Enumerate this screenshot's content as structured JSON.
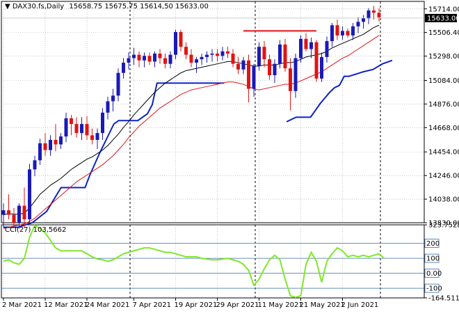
{
  "header": {
    "arrow": "▼",
    "symbol": "DAX30.fs,Daily",
    "ohlc": "15658.75 15675.75 15614,50 15633.00"
  },
  "cci_header": {
    "label": "CCI(27)",
    "value": "103,5662"
  },
  "colors": {
    "bull": "#1a1ab8",
    "bear": "#e01414",
    "ema_fast": "#000000",
    "ema_slow": "#e01414",
    "support": "#0a22c8",
    "resistance": "#e01414",
    "cci": "#7ee82a",
    "grid": "#9aa0a8",
    "level": "#3a6aa8"
  },
  "chart_data": [
    {
      "type": "candlestick",
      "title": "DAX30.fs,Daily",
      "price_axis_ticks": [
        "15714.00",
        "15506.40",
        "15298.00",
        "15084.00",
        "14876.00",
        "14668.00",
        "14454.00",
        "14246.00",
        "14038.00",
        "13830.00"
      ],
      "ylim": [
        13830,
        15780
      ],
      "last_price": "15633.00",
      "date_ticks": [
        "2 Mar 2021",
        "12 Mar 2021",
        "24 Mar 2021",
        "7 Apr 2021",
        "19 Apr 2021",
        "29 Apr 2021",
        "11 May 2021",
        "21 May 2021",
        "2 Jun 2021"
      ],
      "ohlc": [
        [
          13900,
          14000,
          13790,
          13940
        ],
        [
          13940,
          14080,
          13860,
          13900
        ],
        [
          13900,
          13960,
          13800,
          13830
        ],
        [
          13830,
          14000,
          13780,
          13980
        ],
        [
          13980,
          14140,
          13780,
          13860
        ],
        [
          13860,
          14350,
          13830,
          14300
        ],
        [
          14300,
          14420,
          14240,
          14380
        ],
        [
          14380,
          14570,
          14340,
          14530
        ],
        [
          14530,
          14620,
          14420,
          14470
        ],
        [
          14470,
          14600,
          14420,
          14560
        ],
        [
          14560,
          14700,
          14460,
          14520
        ],
        [
          14520,
          14620,
          14480,
          14590
        ],
        [
          14590,
          14800,
          14540,
          14750
        ],
        [
          14750,
          14780,
          14600,
          14700
        ],
        [
          14700,
          14760,
          14580,
          14620
        ],
        [
          14620,
          14760,
          14560,
          14700
        ],
        [
          14700,
          14770,
          14560,
          14600
        ],
        [
          14600,
          14660,
          14520,
          14560
        ],
        [
          14560,
          14660,
          14480,
          14620
        ],
        [
          14620,
          14840,
          14560,
          14800
        ],
        [
          14800,
          14940,
          14740,
          14900
        ],
        [
          14900,
          15010,
          14810,
          14950
        ],
        [
          14950,
          15190,
          14900,
          15150
        ],
        [
          15150,
          15280,
          15100,
          15240
        ],
        [
          15240,
          15330,
          15180,
          15280
        ],
        [
          15280,
          15370,
          15220,
          15310
        ],
        [
          15310,
          15340,
          15200,
          15260
        ],
        [
          15260,
          15330,
          15200,
          15300
        ],
        [
          15300,
          15330,
          15220,
          15250
        ],
        [
          15250,
          15340,
          15200,
          15320
        ],
        [
          15320,
          15360,
          15230,
          15280
        ],
        [
          15280,
          15320,
          15190,
          15230
        ],
        [
          15230,
          15340,
          15190,
          15310
        ],
        [
          15310,
          15530,
          15270,
          15510
        ],
        [
          15510,
          15530,
          15340,
          15380
        ],
        [
          15380,
          15420,
          15270,
          15310
        ],
        [
          15310,
          15360,
          15200,
          15240
        ],
        [
          15240,
          15290,
          15150,
          15270
        ],
        [
          15270,
          15320,
          15220,
          15290
        ],
        [
          15290,
          15340,
          15240,
          15310
        ],
        [
          15310,
          15360,
          15250,
          15320
        ],
        [
          15320,
          15360,
          15250,
          15300
        ],
        [
          15300,
          15380,
          15260,
          15340
        ],
        [
          15340,
          15380,
          15280,
          15320
        ],
        [
          15320,
          15360,
          15200,
          15230
        ],
        [
          15230,
          15290,
          15140,
          15180
        ],
        [
          15180,
          15290,
          15140,
          15260
        ],
        [
          15260,
          15310,
          14890,
          15010
        ],
        [
          15010,
          15230,
          14940,
          15210
        ],
        [
          15210,
          15420,
          15170,
          15380
        ],
        [
          15380,
          15430,
          15200,
          15270
        ],
        [
          15270,
          15310,
          15090,
          15130
        ],
        [
          15130,
          15270,
          15060,
          15230
        ],
        [
          15230,
          15440,
          15190,
          15400
        ],
        [
          15400,
          15450,
          15160,
          15190
        ],
        [
          15190,
          15280,
          14820,
          14990
        ],
        [
          14990,
          15320,
          14930,
          15280
        ],
        [
          15280,
          15480,
          15240,
          15450
        ],
        [
          15450,
          15500,
          15340,
          15360
        ],
        [
          15360,
          15460,
          15280,
          15420
        ],
        [
          15420,
          15440,
          15070,
          15100
        ],
        [
          15100,
          15330,
          15070,
          15290
        ],
        [
          15290,
          15470,
          15240,
          15430
        ],
        [
          15430,
          15590,
          15380,
          15570
        ],
        [
          15570,
          15620,
          15440,
          15480
        ],
        [
          15480,
          15560,
          15440,
          15520
        ],
        [
          15520,
          15540,
          15460,
          15480
        ],
        [
          15480,
          15590,
          15440,
          15560
        ],
        [
          15560,
          15640,
          15500,
          15600
        ],
        [
          15600,
          15660,
          15540,
          15630
        ],
        [
          15630,
          15720,
          15580,
          15700
        ],
        [
          15700,
          15740,
          15620,
          15680
        ],
        [
          15680,
          15720,
          15600,
          15640
        ]
      ],
      "ema_fast": [
        13900,
        13910,
        13905,
        13905,
        13915,
        13960,
        14020,
        14080,
        14120,
        14160,
        14190,
        14220,
        14260,
        14300,
        14330,
        14360,
        14390,
        14410,
        14440,
        14470,
        14510,
        14560,
        14610,
        14670,
        14720,
        14780,
        14830,
        14880,
        14930,
        14980,
        15020,
        15060,
        15090,
        15120,
        15150,
        15170,
        15180,
        15190,
        15200,
        15210,
        15220,
        15230,
        15240,
        15250,
        15250,
        15240,
        15230,
        15220,
        15210,
        15210,
        15220,
        15220,
        15220,
        15230,
        15240,
        15240,
        15250,
        15270,
        15290,
        15300,
        15310,
        15320,
        15340,
        15370,
        15390,
        15410,
        15430,
        15450,
        15470,
        15490,
        15520,
        15550,
        15570
      ],
      "ema_slow": [
        13780,
        13790,
        13800,
        13810,
        13820,
        13840,
        13870,
        13910,
        13950,
        13990,
        14030,
        14070,
        14110,
        14150,
        14190,
        14220,
        14250,
        14280,
        14310,
        14340,
        14380,
        14420,
        14470,
        14520,
        14580,
        14630,
        14680,
        14720,
        14760,
        14800,
        14840,
        14870,
        14900,
        14930,
        14960,
        14980,
        15000,
        15010,
        15020,
        15030,
        15040,
        15050,
        15060,
        15070,
        15070,
        15060,
        15050,
        15030,
        15010,
        15000,
        15010,
        15020,
        15030,
        15040,
        15050,
        15050,
        15060,
        15080,
        15100,
        15120,
        15140,
        15160,
        15190,
        15220,
        15250,
        15280,
        15300,
        15330,
        15360,
        15390,
        15420,
        15450,
        15480
      ],
      "support_line": [
        [
          0,
          13790
        ],
        [
          3,
          13790
        ],
        [
          6,
          13830
        ],
        [
          9,
          13930
        ],
        [
          12,
          14140
        ],
        [
          16,
          14140
        ],
        [
          17,
          14140
        ],
        [
          18,
          14250
        ],
        [
          20,
          14440
        ],
        [
          23,
          14700
        ],
        [
          24,
          14730
        ],
        [
          28,
          14730
        ],
        [
          30,
          14790
        ],
        [
          31,
          14870
        ],
        [
          32,
          15060
        ],
        [
          46,
          15060
        ],
        [
          null,
          null
        ],
        [
          59,
          14720
        ],
        [
          61,
          14760
        ],
        [
          64,
          14760
        ],
        [
          66,
          14880
        ],
        [
          68,
          14980
        ],
        [
          69,
          15020
        ],
        [
          70,
          15040
        ],
        [
          71,
          15120
        ],
        [
          72,
          15120
        ],
        [
          75,
          15160
        ],
        [
          77,
          15180
        ],
        [
          79,
          15230
        ],
        [
          81,
          15260
        ]
      ],
      "resistance_line": [
        [
          46,
          15520
        ],
        [
          60,
          15520
        ]
      ]
    },
    {
      "type": "line",
      "title": "CCI(27)",
      "axis_labels": [
        "323.7528",
        "200",
        "100",
        "0.00",
        "-100",
        "-164.5118"
      ],
      "levels": [
        200,
        100,
        0,
        -100
      ],
      "ylim": [
        -164.5118,
        323.7528
      ],
      "values": [
        80,
        90,
        70,
        60,
        100,
        240,
        320,
        300,
        270,
        220,
        170,
        150,
        150,
        150,
        150,
        150,
        130,
        110,
        95,
        90,
        80,
        90,
        110,
        130,
        140,
        150,
        160,
        170,
        170,
        160,
        150,
        140,
        140,
        130,
        120,
        110,
        110,
        110,
        100,
        95,
        90,
        90,
        95,
        100,
        90,
        80,
        60,
        20,
        -80,
        -40,
        30,
        90,
        120,
        90,
        -40,
        -150,
        -160,
        -150,
        60,
        140,
        80,
        -60,
        80,
        130,
        170,
        150,
        110,
        120,
        110,
        120,
        110,
        120,
        130,
        100
      ]
    }
  ]
}
